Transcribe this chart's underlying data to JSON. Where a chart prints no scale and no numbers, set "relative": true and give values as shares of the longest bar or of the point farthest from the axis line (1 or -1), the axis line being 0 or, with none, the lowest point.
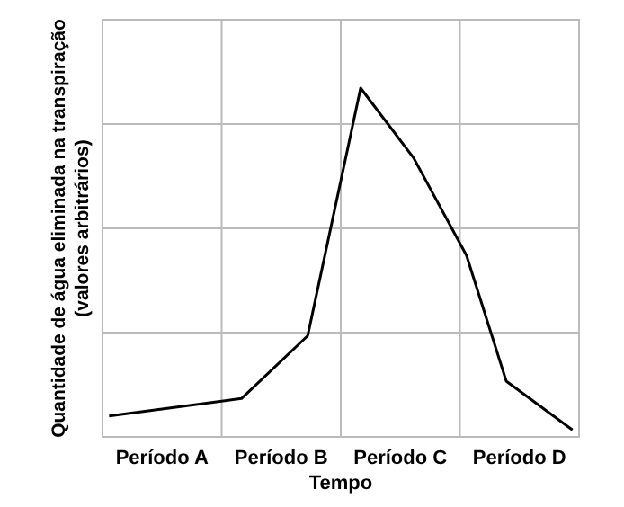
{
  "chart_data": {
    "type": "line",
    "relative": true,
    "xlabel": "Tempo",
    "ylabel": "Quantidade de água eliminada na transpiração\n(valores arbitrários)",
    "categories": [
      null,
      null,
      null,
      null,
      "Período A",
      null,
      null,
      null,
      null,
      null,
      null,
      null,
      null,
      "Período B",
      null,
      null,
      null,
      null,
      null,
      null,
      null,
      null,
      "Período C",
      null,
      null,
      null,
      null,
      null,
      null,
      null,
      null,
      "Período D",
      null,
      null,
      null,
      null
    ],
    "series": [
      {
        "color": "#000000",
        "values": [
          0.06,
          null,
          null,
          null,
          null,
          null,
          null,
          null,
          null,
          null,
          0.11,
          null,
          null,
          null,
          null,
          0.29,
          null,
          null,
          null,
          1,
          null,
          null,
          null,
          0.8,
          null,
          null,
          null,
          0.52,
          null,
          null,
          0.16,
          null,
          null,
          null,
          null,
          0.02
        ]
      }
    ],
    "grid": true,
    "marker": "none",
    "line_style": "solid"
  }
}
